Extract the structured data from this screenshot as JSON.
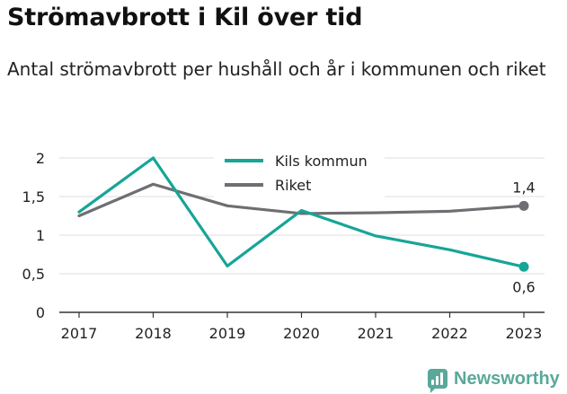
{
  "title": "Strömavbrott i Kil över tid",
  "subtitle": "Antal strömavbrott per hushåll och år i kommunen och riket",
  "brand": {
    "name": "Newsworthy",
    "icon": "newsworthy-chart-icon"
  },
  "chart_data": {
    "type": "line",
    "x": [
      "2017",
      "2018",
      "2019",
      "2020",
      "2021",
      "2022",
      "2023"
    ],
    "ylim": [
      0,
      2
    ],
    "yticks": [
      "0",
      "0,5",
      "1",
      "1,5",
      "2"
    ],
    "grid": true,
    "legend_placement": "top-center",
    "series": [
      {
        "name": "Kils kommun",
        "color": "#16a597",
        "values": [
          1.3,
          2.0,
          0.6,
          1.32,
          0.99,
          0.81,
          0.59
        ],
        "end_label": "0,6"
      },
      {
        "name": "Riket",
        "color": "#6e6e73",
        "values": [
          1.25,
          1.66,
          1.38,
          1.28,
          1.29,
          1.31,
          1.38
        ],
        "end_label": "1,4"
      }
    ]
  }
}
